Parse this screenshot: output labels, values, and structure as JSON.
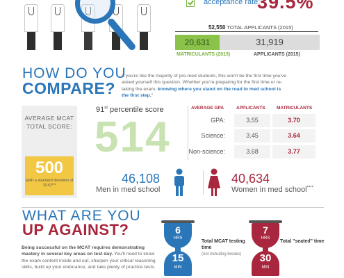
{
  "header": {
    "acceptance_label": "acceptance rate:",
    "acceptance_value": "39.5%",
    "total_applicants_number": "52,550",
    "total_applicants_label": "TOTAL APPLICANTS (2015)",
    "matriculants_value": "20,631",
    "matriculants_label": "MATRICULANTS (2015)",
    "applicants_value": "31,919",
    "applicants_label": "APPLICANTS (2015)"
  },
  "compare": {
    "heading_line1": "HOW DO YOU",
    "heading_line2": "COMPARE?",
    "intro_text": "If you're like the majority of pre-med students, this won't be the first time you've asked yourself this question. Whether you're preparing for the first time or re-taking the exam, ",
    "intro_bold": "knowing where you stand on the road to med school is the first step.",
    "intro_end": "\"",
    "avg_title": "AVERAGE MCAT TOTAL SCORE:",
    "avg_score": "500",
    "avg_note": "(with a standard deviation of 10.6)***",
    "percentile_number": "91",
    "percentile_suffix": "st",
    "percentile_label": "percentile score",
    "percentile_score": "514"
  },
  "gpa_table": {
    "headers": [
      "AVERAGE GPA",
      "APPLICANTS",
      "MATRICULANTS"
    ],
    "rows": [
      {
        "label": "GPA:",
        "applicants": "3.55",
        "matriculants": "3.70"
      },
      {
        "label": "Science:",
        "applicants": "3.45",
        "matriculants": "3.64"
      },
      {
        "label": "Non-science:",
        "applicants": "3.68",
        "matriculants": "3.77"
      }
    ]
  },
  "gender": {
    "men_number": "46,108",
    "men_label": "Men in med school",
    "women_number": "40,634",
    "women_label": "Women in med school",
    "women_note": "****"
  },
  "against": {
    "heading_line1": "WHAT ARE YOU",
    "heading_line2": "UP AGAINST?",
    "body_bold": "Being successful on the MCAT requires demonstrating mastery in several key areas on test day.",
    "body_text": " You'll need to know the exam content inside and out, sharpen your critical reasoning skills, build up your endurance, and take plenty of practice tests.",
    "hourglass1": {
      "hours": "6",
      "hours_unit": "HRS",
      "minutes": "15",
      "minutes_unit": "MIN",
      "caption": "Total MCAT testing time",
      "sub": "(not including breaks)"
    },
    "hourglass2": {
      "hours": "7",
      "hours_unit": "HRS",
      "minutes": "30",
      "minutes_unit": "MIN",
      "caption": "Total \"seated\" time"
    }
  },
  "colors": {
    "blue": "#2a76b9",
    "crimson": "#a8273e",
    "green": "#8bc34a",
    "yellow": "#f2c744"
  }
}
